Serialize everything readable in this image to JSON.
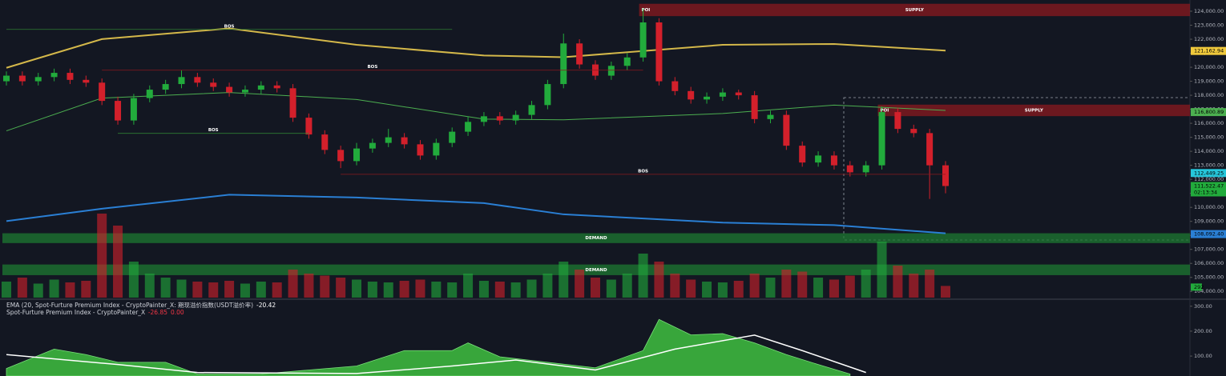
{
  "chart_data": [
    {
      "type": "candlestick",
      "open": [
        119000,
        119400,
        119000,
        119300,
        119600,
        119100,
        118900,
        117600,
        116200,
        117800,
        118400,
        118800,
        119300,
        118900,
        118600,
        118200,
        118400,
        118700,
        118500,
        116400,
        115200,
        114100,
        113300,
        114200,
        114600,
        115000,
        114500,
        113700,
        114600,
        115400,
        116100,
        116500,
        116200,
        116600,
        117300,
        118800,
        121700,
        120200,
        119400,
        120100,
        120700,
        123200,
        119000,
        118300,
        117700,
        117900,
        118200,
        118000,
        116300,
        116600,
        114400,
        113200,
        113700,
        113000,
        112500,
        113000,
        116800,
        115600,
        115300,
        113000
      ],
      "high": [
        119700,
        119700,
        119600,
        119900,
        119900,
        119400,
        119200,
        117900,
        118100,
        118700,
        119100,
        119800,
        119600,
        119200,
        118900,
        118700,
        119000,
        119000,
        118800,
        116700,
        115500,
        114400,
        114600,
        114900,
        115600,
        115300,
        114800,
        114900,
        115700,
        116500,
        116800,
        116800,
        116900,
        117600,
        119100,
        122400,
        122000,
        120500,
        120400,
        121000,
        124200,
        123500,
        119300,
        118600,
        118200,
        118500,
        118400,
        118300,
        116900,
        116900,
        114700,
        114000,
        114000,
        113300,
        113300,
        117200,
        117100,
        115900,
        115600,
        113300
      ],
      "low": [
        118700,
        118700,
        118700,
        119000,
        118800,
        118600,
        117300,
        115900,
        115900,
        117500,
        118100,
        118500,
        118600,
        118300,
        117900,
        117900,
        118100,
        118200,
        116100,
        114900,
        113800,
        112800,
        113000,
        113900,
        114300,
        114200,
        113400,
        113400,
        114300,
        115100,
        115800,
        115900,
        115900,
        116300,
        117000,
        118500,
        119900,
        119100,
        119100,
        119800,
        120400,
        118700,
        118000,
        117400,
        117400,
        117600,
        117700,
        116000,
        116000,
        114100,
        112900,
        112900,
        112700,
        112200,
        112200,
        112700,
        115300,
        115000,
        110600,
        111000
      ],
      "close": [
        119400,
        119000,
        119300,
        119600,
        119100,
        118900,
        117600,
        116200,
        117800,
        118400,
        118800,
        119300,
        118900,
        118600,
        118200,
        118400,
        118700,
        118500,
        116400,
        115200,
        114100,
        113300,
        114200,
        114600,
        115000,
        114500,
        113700,
        114600,
        115400,
        116100,
        116500,
        116200,
        116600,
        117300,
        118800,
        121700,
        120200,
        119400,
        120100,
        120700,
        123200,
        119000,
        118300,
        117700,
        117900,
        118200,
        118000,
        116300,
        116600,
        114400,
        113200,
        113700,
        113000,
        112500,
        113000,
        116800,
        115600,
        115300,
        113000,
        111522.47
      ],
      "volume": [
        400,
        500,
        350,
        450,
        380,
        420,
        2100,
        1800,
        900,
        600,
        500,
        450,
        400,
        380,
        420,
        350,
        400,
        380,
        700,
        600,
        550,
        500,
        450,
        400,
        380,
        420,
        450,
        400,
        380,
        600,
        420,
        400,
        380,
        450,
        600,
        900,
        700,
        500,
        450,
        600,
        1100,
        900,
        600,
        450,
        400,
        380,
        420,
        600,
        500,
        700,
        650,
        500,
        450,
        550,
        700,
        1400,
        800,
        600,
        700,
        292
      ],
      "volume_label": "292",
      "vlim": [
        0,
        2200
      ],
      "up_color": "#22ab3c",
      "down_color": "#d3202b",
      "ylim": [
        103500,
        124800
      ],
      "yticks": [
        {
          "value": 104000,
          "label": "104,000.00"
        },
        {
          "value": 105000,
          "label": "105,000.00"
        },
        {
          "value": 106000,
          "label": "106,000.00"
        },
        {
          "value": 107000,
          "label": "107,000.00"
        },
        {
          "value": 108000,
          "label": "108,000.00"
        },
        {
          "value": 109000,
          "label": "109,000.00"
        },
        {
          "value": 110000,
          "label": "110,000.00"
        },
        {
          "value": 111000,
          "label": "111,000.00"
        },
        {
          "value": 112000,
          "label": "112,000.00"
        },
        {
          "value": 113000,
          "label": "113,000.00"
        },
        {
          "value": 114000,
          "label": "114,000.00"
        },
        {
          "value": 115000,
          "label": "115,000.00"
        },
        {
          "value": 116000,
          "label": "116,000.00"
        },
        {
          "value": 117000,
          "label": "117,000.00"
        },
        {
          "value": 118000,
          "label": "118,000.00"
        },
        {
          "value": 119000,
          "label": "119,000.00"
        },
        {
          "value": 120000,
          "label": "120,000.00"
        },
        {
          "value": 121000,
          "label": "121,000.00"
        },
        {
          "value": 122000,
          "label": "122,000.00"
        },
        {
          "value": 123000,
          "label": "123,000.00"
        },
        {
          "value": 124000,
          "label": "124,000.00"
        }
      ],
      "price_labels": [
        {
          "value": 121162.94,
          "label": "121,162.94",
          "color": "#f0c93c"
        },
        {
          "value": 116800.89,
          "label": "116,800.89",
          "color": "#4caf50"
        },
        {
          "value": 112449.25,
          "label": "112,449.25",
          "color": "#26c6da"
        },
        {
          "value": 111522.47,
          "label": "111,522.47",
          "color": "#22ab3c",
          "sub": "02:13:34"
        },
        {
          "value": 108092.4,
          "label": "108,092.40",
          "color": "#2a7fd4"
        }
      ],
      "lines": [
        {
          "color": "#d4b84a",
          "width": 2,
          "x": [
            0,
            6,
            14,
            22,
            30,
            35,
            45,
            52,
            59
          ],
          "values": [
            119960,
            122010,
            122770,
            121600,
            120840,
            120720,
            121600,
            121660,
            121190
          ]
        },
        {
          "color": "#4caf50",
          "width": 1,
          "x": [
            0,
            6,
            14,
            22,
            30,
            35,
            45,
            52,
            59
          ],
          "values": [
            115460,
            117800,
            118200,
            117700,
            116300,
            116250,
            116700,
            117300,
            116920
          ]
        },
        {
          "color": "#2a7fd4",
          "width": 2,
          "x": [
            0,
            6,
            14,
            22,
            30,
            35,
            45,
            52,
            59
          ],
          "values": [
            109020,
            109900,
            110900,
            110700,
            110300,
            109500,
            108910,
            108730,
            108150
          ]
        }
      ],
      "zones": [
        {
          "label": "SUPPLY",
          "tag": "POI",
          "top": 124530,
          "bottom": 123650,
          "from": 40,
          "color": "#8b1a1f"
        },
        {
          "label": "SUPPLY",
          "tag": "POI",
          "top": 117330,
          "bottom": 116510,
          "from": 55,
          "color": "#8b1a1f"
        },
        {
          "label": "DEMAND",
          "top": 108150,
          "bottom": 107450,
          "from": 0,
          "color": "#1e7a32"
        },
        {
          "label": "DEMAND",
          "top": 105920,
          "bottom": 105160,
          "from": 0,
          "color": "#1e7a32"
        }
      ],
      "bos": [
        {
          "label": "BOS",
          "value": 122700,
          "from": 0,
          "to": 28
        },
        {
          "label": "BOS",
          "value": 119790,
          "from": 6,
          "to": 40
        },
        {
          "label": "BOS",
          "value": 115280,
          "from": 7,
          "to": 19
        },
        {
          "label": "BOS",
          "value": 112360,
          "from": 21,
          "to": 59
        }
      ]
    },
    {
      "type": "area",
      "legend": [
        {
          "text": "EMA (20, Spot-Furture Premium Index - CryptoPainter_X: 期现溢价指数(USDT溢价率)",
          "values": [
            "-20.42"
          ]
        },
        {
          "text": "Spot-Furture Premium Index - CryptoPainter_X",
          "values": [
            "-26.85",
            "0.00"
          ]
        }
      ],
      "color": "#3fbf3f",
      "x": [
        0,
        3,
        5,
        7,
        10,
        12,
        16,
        22,
        25,
        28,
        29,
        31,
        34,
        37,
        40,
        41,
        43,
        45,
        47,
        49,
        51,
        53
      ],
      "values": [
        50,
        128,
        106,
        75,
        75,
        28,
        28,
        60,
        122,
        122,
        153,
        97,
        75,
        53,
        122,
        247,
        185,
        190,
        153,
        106,
        66,
        28
      ],
      "ema": {
        "color": "#ffffff",
        "x": [
          0,
          7,
          12,
          22,
          28,
          32,
          37,
          42,
          47,
          50,
          54
        ],
        "values": [
          106,
          66,
          34,
          30,
          60,
          84,
          44,
          128,
          184,
          122,
          34
        ]
      },
      "ylim": [
        20,
        325
      ],
      "yticks": [
        {
          "value": 300,
          "label": "300.00"
        },
        {
          "value": 200,
          "label": "200.00"
        },
        {
          "value": 100,
          "label": "100.00"
        }
      ]
    }
  ]
}
